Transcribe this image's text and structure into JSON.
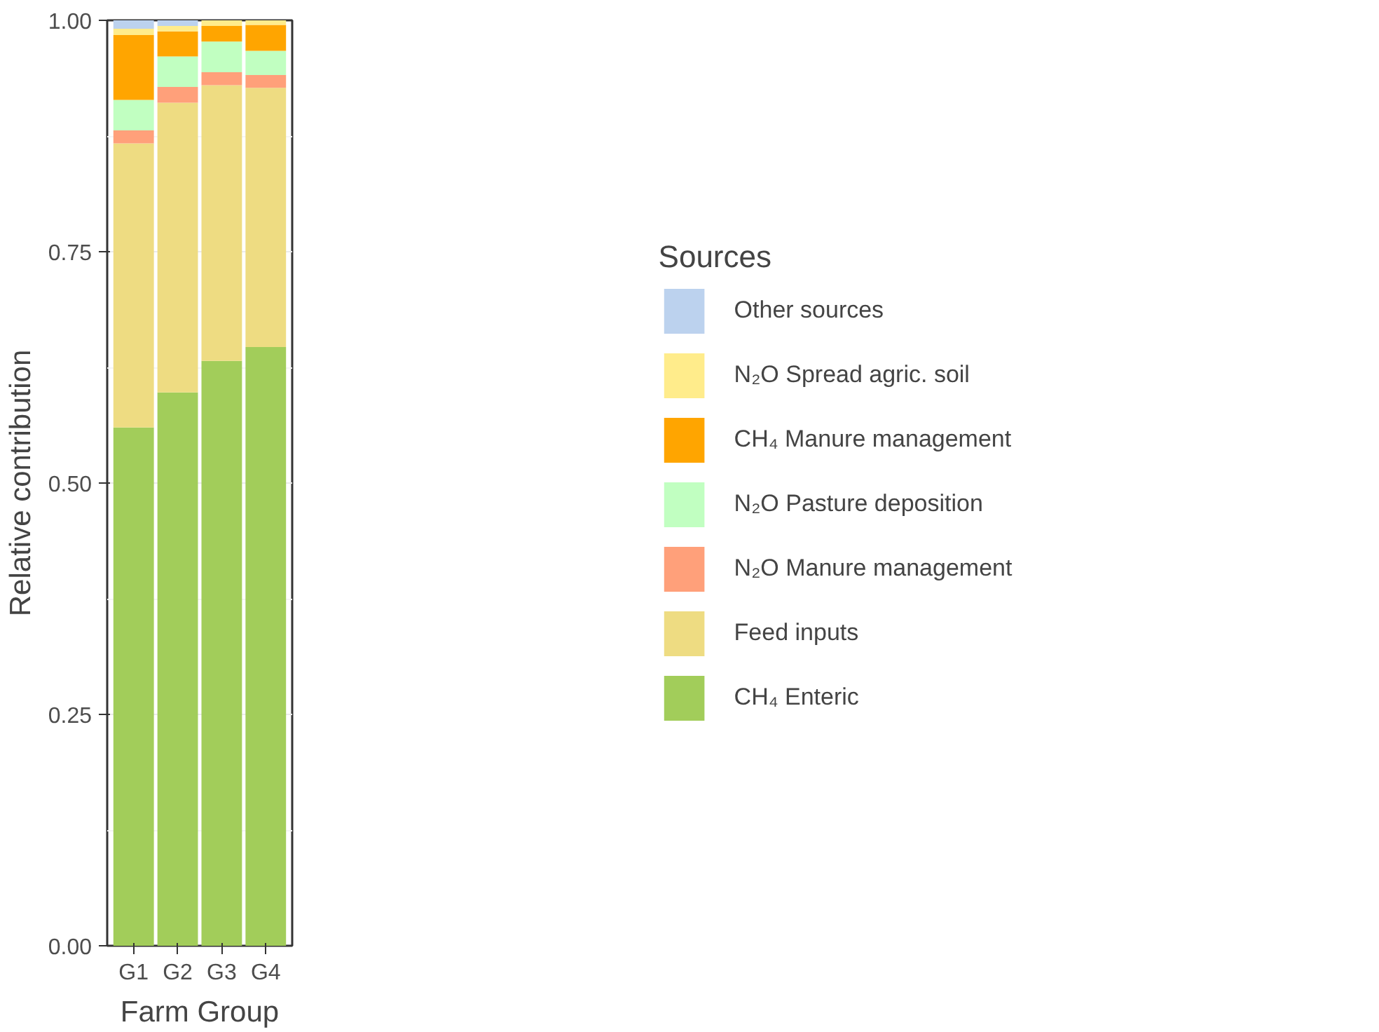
{
  "chart_data": {
    "type": "bar",
    "stacked": true,
    "xlabel": "Farm Group",
    "ylabel": "Relative contribution",
    "legend_title": "Sources",
    "categories": [
      "G1",
      "G2",
      "G3",
      "G4"
    ],
    "series": [
      {
        "name": "CH₄ Enteric",
        "color": "#a2cd5a",
        "values": [
          0.56,
          0.598,
          0.632,
          0.647
        ]
      },
      {
        "name": "Feed inputs",
        "color": "#eedc82",
        "values": [
          0.307,
          0.313,
          0.298,
          0.28
        ]
      },
      {
        "name": "N₂O Manure management",
        "color": "#ffa07a",
        "values": [
          0.014,
          0.017,
          0.014,
          0.014
        ]
      },
      {
        "name": "N₂O Pasture deposition",
        "color": "#c1ffc1",
        "values": [
          0.033,
          0.033,
          0.033,
          0.026
        ]
      },
      {
        "name": "CH₄ Manure management",
        "color": "#ffa500",
        "values": [
          0.07,
          0.027,
          0.017,
          0.028
        ]
      },
      {
        "name": "N₂O Spread agric. soil",
        "color": "#ffec8b",
        "values": [
          0.007,
          0.006,
          0.006,
          0.005
        ]
      },
      {
        "name": "Other sources",
        "color": "#bcd2ee",
        "values": [
          0.009,
          0.006,
          0.0,
          0.0
        ]
      }
    ],
    "ylim": [
      0,
      1
    ],
    "yticks": [
      {
        "value": 0,
        "label": "0.00"
      },
      {
        "value": 0.25,
        "label": "0.25"
      },
      {
        "value": 0.5,
        "label": "0.50"
      },
      {
        "value": 0.75,
        "label": "0.75"
      },
      {
        "value": 1,
        "label": "1.00"
      }
    ],
    "grid": "y",
    "legend": "right"
  }
}
